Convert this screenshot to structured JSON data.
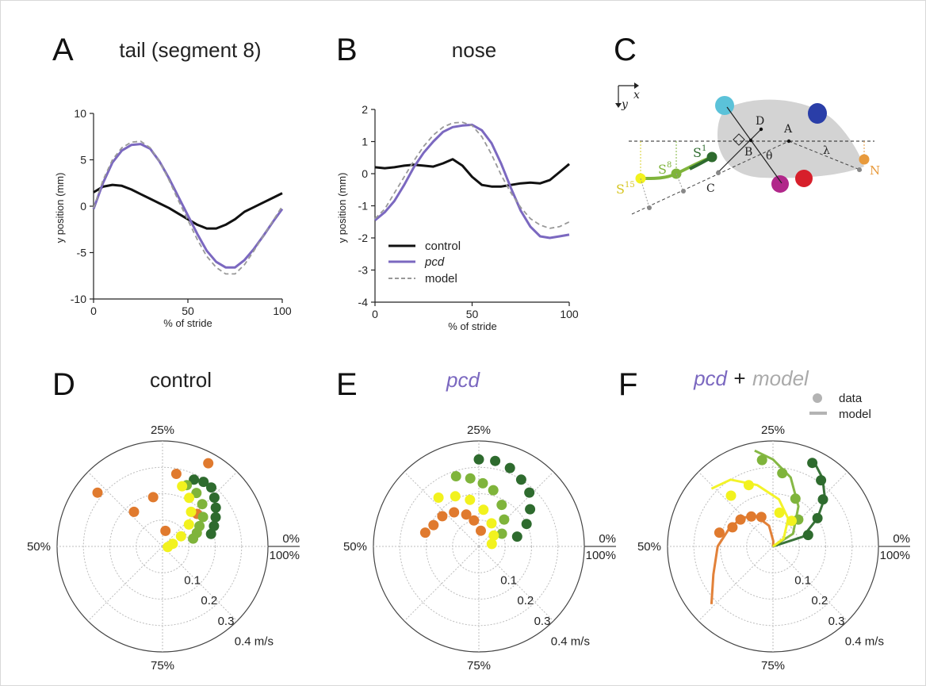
{
  "colors": {
    "control": "#111111",
    "pcd": "#7B68C0",
    "model": "#999999",
    "orange": "#E07A2E",
    "dark_green": "#2E6B2E",
    "light_green": "#7FB43B",
    "yellow": "#F2F21E",
    "gray_data": "#b3b3b3"
  },
  "chart_data": [
    {
      "panel": "A",
      "type": "line",
      "title": "tail (segment 8)",
      "xlabel": "% of stride",
      "ylabel": "y position (mm)",
      "xlim": [
        0,
        100
      ],
      "ylim": [
        -10,
        10
      ],
      "xticks": [
        "0",
        "50",
        "100"
      ],
      "yticks": [
        "10",
        "5",
        "0",
        "-5",
        "-10"
      ],
      "series": [
        {
          "name": "control",
          "style": "solid",
          "color": "#111111",
          "x": [
            0,
            5,
            10,
            15,
            20,
            25,
            30,
            35,
            40,
            45,
            50,
            55,
            60,
            65,
            70,
            75,
            80,
            85,
            90,
            95,
            100
          ],
          "y": [
            1.5,
            2.1,
            2.3,
            2.2,
            1.8,
            1.3,
            0.8,
            0.3,
            -0.2,
            -0.8,
            -1.4,
            -2.0,
            -2.4,
            -2.4,
            -2.0,
            -1.4,
            -0.6,
            -0.1,
            0.4,
            0.9,
            1.4
          ]
        },
        {
          "name": "pcd",
          "style": "solid",
          "color": "#7B68C0",
          "x": [
            0,
            5,
            10,
            15,
            20,
            25,
            30,
            35,
            40,
            45,
            50,
            55,
            60,
            65,
            70,
            75,
            80,
            85,
            90,
            95,
            100
          ],
          "y": [
            -0.3,
            2.5,
            4.7,
            6.0,
            6.6,
            6.7,
            6.2,
            4.8,
            3.0,
            1.0,
            -1.0,
            -3.0,
            -4.8,
            -6.0,
            -6.6,
            -6.6,
            -5.8,
            -4.6,
            -3.2,
            -1.7,
            -0.3
          ]
        },
        {
          "name": "model",
          "style": "dashed",
          "color": "#999999",
          "x": [
            0,
            5,
            10,
            15,
            20,
            25,
            30,
            35,
            40,
            45,
            50,
            55,
            60,
            65,
            70,
            75,
            80,
            85,
            90,
            95,
            100
          ],
          "y": [
            -0.2,
            2.8,
            5.0,
            6.3,
            6.9,
            7.0,
            6.3,
            4.8,
            2.8,
            0.6,
            -1.5,
            -3.6,
            -5.4,
            -6.6,
            -7.3,
            -7.3,
            -6.3,
            -4.8,
            -3.2,
            -1.6,
            0
          ]
        }
      ]
    },
    {
      "panel": "B",
      "type": "line",
      "title": "nose",
      "xlabel": "% of stride",
      "ylabel": "y position (mm)",
      "xlim": [
        0,
        100
      ],
      "ylim": [
        -4,
        2
      ],
      "xticks": [
        "0",
        "50",
        "100"
      ],
      "yticks": [
        "2",
        "1",
        "0",
        "-1",
        "-2",
        "-3",
        "-4"
      ],
      "legend": [
        "control",
        "pcd",
        "model"
      ],
      "series": [
        {
          "name": "control",
          "style": "solid",
          "color": "#111111",
          "x": [
            0,
            5,
            10,
            15,
            20,
            25,
            30,
            35,
            40,
            45,
            50,
            55,
            60,
            65,
            70,
            75,
            80,
            85,
            90,
            95,
            100
          ],
          "y": [
            0.2,
            0.17,
            0.2,
            0.25,
            0.28,
            0.25,
            0.22,
            0.32,
            0.45,
            0.25,
            -0.1,
            -0.35,
            -0.4,
            -0.4,
            -0.35,
            -0.3,
            -0.28,
            -0.3,
            -0.2,
            0.05,
            0.3
          ]
        },
        {
          "name": "pcd",
          "style": "solid",
          "color": "#7B68C0",
          "x": [
            0,
            5,
            10,
            15,
            20,
            25,
            30,
            35,
            40,
            45,
            50,
            55,
            60,
            65,
            70,
            75,
            80,
            85,
            90,
            95,
            100
          ],
          "y": [
            -1.45,
            -1.2,
            -0.85,
            -0.35,
            0.2,
            0.65,
            1.0,
            1.3,
            1.45,
            1.5,
            1.52,
            1.35,
            0.95,
            0.3,
            -0.45,
            -1.15,
            -1.65,
            -1.95,
            -2.0,
            -1.95,
            -1.9
          ]
        },
        {
          "name": "model",
          "style": "dashed",
          "color": "#999999",
          "x": [
            0,
            5,
            10,
            15,
            20,
            25,
            30,
            35,
            40,
            45,
            50,
            55,
            60,
            65,
            70,
            75,
            80,
            85,
            90,
            95,
            100
          ],
          "y": [
            -1.4,
            -1.1,
            -0.6,
            -0.1,
            0.4,
            0.85,
            1.2,
            1.45,
            1.58,
            1.6,
            1.5,
            1.15,
            0.6,
            -0.05,
            -0.6,
            -1.05,
            -1.4,
            -1.6,
            -1.7,
            -1.65,
            -1.5
          ]
        }
      ]
    },
    {
      "panel": "D",
      "type": "scatter",
      "title": "control",
      "polar": true,
      "radial_ticks": [
        "0.1",
        "0.2",
        "0.3",
        "0.4 m/s"
      ],
      "angle_labels": {
        "top": "25%",
        "left": "50%",
        "right_top": "0%",
        "right_bottom": "100%",
        "bottom": "75%"
      },
      "series": [
        {
          "name": "",
          "color": "#E07A2E",
          "points": [
            {
              "phase": 17,
              "r": 0.36
            },
            {
              "phase": 22,
              "r": 0.28
            },
            {
              "phase": 28,
              "r": 0.19
            },
            {
              "phase": 39,
              "r": 0.32
            },
            {
              "phase": 36,
              "r": 0.17
            },
            {
              "phase": 12,
              "r": 0.18
            },
            {
              "phase": 22,
              "r": 0.06
            }
          ]
        },
        {
          "name": "",
          "color": "#2E6B2E",
          "points": [
            {
              "phase": 18,
              "r": 0.28
            },
            {
              "phase": 16,
              "r": 0.29
            },
            {
              "phase": 14,
              "r": 0.29
            },
            {
              "phase": 12,
              "r": 0.27
            },
            {
              "phase": 10,
              "r": 0.25
            },
            {
              "phase": 8,
              "r": 0.23
            },
            {
              "phase": 6,
              "r": 0.21
            },
            {
              "phase": 4,
              "r": 0.19
            }
          ]
        },
        {
          "name": "",
          "color": "#7FB43B",
          "points": [
            {
              "phase": 19,
              "r": 0.25
            },
            {
              "phase": 16,
              "r": 0.24
            },
            {
              "phase": 13,
              "r": 0.22
            },
            {
              "phase": 10,
              "r": 0.19
            },
            {
              "phase": 8,
              "r": 0.16
            },
            {
              "phase": 6,
              "r": 0.14
            },
            {
              "phase": 4,
              "r": 0.12
            }
          ]
        },
        {
          "name": "",
          "color": "#F2F21E",
          "points": [
            {
              "phase": 20,
              "r": 0.24
            },
            {
              "phase": 17,
              "r": 0.21
            },
            {
              "phase": 14,
              "r": 0.17
            },
            {
              "phase": 11,
              "r": 0.13
            },
            {
              "phase": 8,
              "r": 0.08
            },
            {
              "phase": 4,
              "r": 0.04
            },
            {
              "phase": -2,
              "r": 0.02
            }
          ]
        }
      ]
    },
    {
      "panel": "E",
      "type": "scatter",
      "title": "pcd",
      "polar": true,
      "radial_ticks": [
        "0.1",
        "0.2",
        "0.3",
        "0.4 m/s"
      ],
      "angle_labels": {
        "top": "25%",
        "left": "50%",
        "right_top": "0%",
        "right_bottom": "100%",
        "bottom": "75%"
      },
      "series": [
        {
          "name": "",
          "color": "#E07A2E",
          "points": [
            {
              "phase": 46,
              "r": 0.21
            },
            {
              "phase": 43,
              "r": 0.19
            },
            {
              "phase": 39,
              "r": 0.18
            },
            {
              "phase": 35,
              "r": 0.16
            },
            {
              "phase": 31,
              "r": 0.13
            },
            {
              "phase": 28,
              "r": 0.1
            },
            {
              "phase": 23,
              "r": 0.06
            }
          ]
        },
        {
          "name": "",
          "color": "#2E6B2E",
          "points": [
            {
              "phase": 25,
              "r": 0.33
            },
            {
              "phase": 22,
              "r": 0.33
            },
            {
              "phase": 19,
              "r": 0.32
            },
            {
              "phase": 16,
              "r": 0.3
            },
            {
              "phase": 13,
              "r": 0.28
            },
            {
              "phase": 10,
              "r": 0.24
            },
            {
              "phase": 7,
              "r": 0.2
            },
            {
              "phase": 4,
              "r": 0.15
            }
          ]
        },
        {
          "name": "",
          "color": "#7FB43B",
          "points": [
            {
              "phase": 30,
              "r": 0.28
            },
            {
              "phase": 27,
              "r": 0.26
            },
            {
              "phase": 24,
              "r": 0.24
            },
            {
              "phase": 21,
              "r": 0.22
            },
            {
              "phase": 17,
              "r": 0.18
            },
            {
              "phase": 13,
              "r": 0.14
            },
            {
              "phase": 8,
              "r": 0.1
            }
          ]
        },
        {
          "name": "",
          "color": "#F2F21E",
          "points": [
            {
              "phase": 36,
              "r": 0.24
            },
            {
              "phase": 32,
              "r": 0.21
            },
            {
              "phase": 28,
              "r": 0.18
            },
            {
              "phase": 23,
              "r": 0.14
            },
            {
              "phase": 17,
              "r": 0.1
            },
            {
              "phase": 10,
              "r": 0.07
            },
            {
              "phase": 3,
              "r": 0.05
            }
          ]
        }
      ]
    },
    {
      "panel": "F",
      "type": "scatter",
      "title": "pcd + model",
      "polar": true,
      "radial_ticks": [
        "0.1",
        "0.2",
        "0.3",
        "0.4 m/s"
      ],
      "angle_labels": {
        "top": "25%",
        "left": "50%",
        "right_top": "0%",
        "right_bottom": "100%",
        "bottom": "75%"
      },
      "legend": [
        "data",
        "model"
      ],
      "series": [
        {
          "name": "",
          "color": "#E07A2E",
          "points": [
            {
              "phase": 46,
              "r": 0.21
            },
            {
              "phase": 43,
              "r": 0.17
            },
            {
              "phase": 39,
              "r": 0.16
            },
            {
              "phase": 35,
              "r": 0.14
            },
            {
              "phase": 31,
              "r": 0.12
            }
          ],
          "model": [
            {
              "phase": 0,
              "r": 0.0
            },
            {
              "phase": 24,
              "r": 0.02
            },
            {
              "phase": 28,
              "r": 0.08
            },
            {
              "phase": 33,
              "r": 0.13
            },
            {
              "phase": 38,
              "r": 0.16
            },
            {
              "phase": 44,
              "r": 0.18
            },
            {
              "phase": 50,
              "r": 0.21
            },
            {
              "phase": 57,
              "r": 0.25
            },
            {
              "phase": 62,
              "r": 0.32
            }
          ]
        },
        {
          "name": "",
          "color": "#2E6B2E",
          "points": [
            {
              "phase": 18,
              "r": 0.35
            },
            {
              "phase": 15,
              "r": 0.31
            },
            {
              "phase": 12,
              "r": 0.26
            },
            {
              "phase": 9,
              "r": 0.2
            },
            {
              "phase": 5,
              "r": 0.14
            }
          ],
          "model": [
            {
              "phase": 0,
              "r": 0.0
            },
            {
              "phase": 5,
              "r": 0.12
            },
            {
              "phase": 9,
              "r": 0.2
            },
            {
              "phase": 12,
              "r": 0.27
            },
            {
              "phase": 15,
              "r": 0.32
            },
            {
              "phase": 18,
              "r": 0.36
            }
          ]
        },
        {
          "name": "",
          "color": "#7FB43B",
          "points": [
            {
              "phase": 27,
              "r": 0.33
            },
            {
              "phase": 23,
              "r": 0.28
            },
            {
              "phase": 18,
              "r": 0.2
            },
            {
              "phase": 13,
              "r": 0.14
            }
          ],
          "model": [
            {
              "phase": 0,
              "r": 0.0
            },
            {
              "phase": 9,
              "r": 0.09
            },
            {
              "phase": 16,
              "r": 0.18
            },
            {
              "phase": 21,
              "r": 0.27
            },
            {
              "phase": 25,
              "r": 0.33
            },
            {
              "phase": 28,
              "r": 0.37
            }
          ]
        },
        {
          "name": "",
          "color": "#F2F21E",
          "points": [
            {
              "phase": 36,
              "r": 0.25
            },
            {
              "phase": 31,
              "r": 0.25
            },
            {
              "phase": 22,
              "r": 0.13
            },
            {
              "phase": 15,
              "r": 0.12
            }
          ],
          "model": [
            {
              "phase": 0,
              "r": 0.0
            },
            {
              "phase": 10,
              "r": 0.05
            },
            {
              "phase": 17,
              "r": 0.12
            },
            {
              "phase": 23,
              "r": 0.18
            },
            {
              "phase": 29,
              "r": 0.24
            },
            {
              "phase": 34,
              "r": 0.3
            },
            {
              "phase": 38,
              "r": 0.32
            }
          ]
        }
      ]
    }
  ],
  "panels": {
    "A": {
      "label": "A",
      "title": "tail (segment 8)"
    },
    "B": {
      "label": "B",
      "title": "nose"
    },
    "C": {
      "label": "C"
    },
    "D": {
      "label": "D",
      "title": "control"
    },
    "E": {
      "label": "E",
      "title": "pcd"
    },
    "F": {
      "label": "F",
      "title_pcd": "pcd",
      "title_plus": "+",
      "title_model": "model"
    }
  },
  "axes_text": {
    "xlabel": "% of stride",
    "ylabel": "y position (mm)"
  },
  "legend_b": {
    "control": "control",
    "pcd": "pcd",
    "model": "model"
  },
  "legend_f": {
    "data": "data",
    "model": "model"
  },
  "diagram": {
    "axis_x": "x",
    "axis_y": "y",
    "labels": {
      "D": "D",
      "A": "A",
      "B": "B",
      "C": "C",
      "N": "N",
      "theta": "θ",
      "lambda": "λ"
    },
    "seg_s15": "S",
    "seg_s15_sup": "15",
    "seg_s8": "S",
    "seg_s8_sup": "8",
    "seg_s1": "S",
    "seg_s1_sup": "1"
  }
}
